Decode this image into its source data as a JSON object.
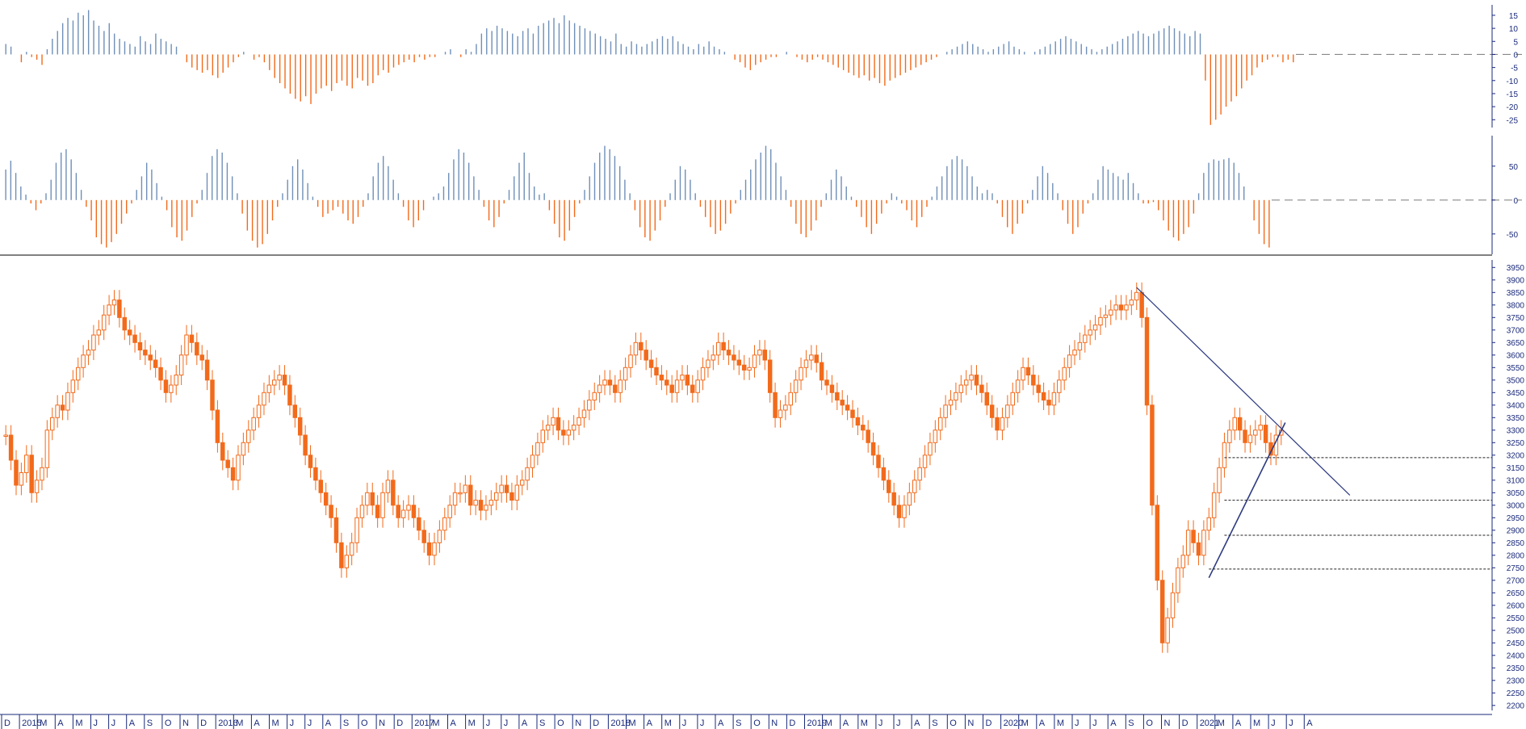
{
  "chart_data": [
    {
      "type": "bar",
      "panel": "top-oscillator",
      "yticks": [
        15,
        10,
        5,
        0,
        -5,
        -10,
        -15,
        -20,
        -25
      ],
      "ylim": [
        -28,
        19
      ],
      "colors": {
        "positive": "#6f8fb8",
        "negative": "#f26a1b"
      },
      "series": [
        {
          "values": [
            4,
            3,
            0,
            -3,
            1,
            -1,
            -2,
            -4,
            2,
            6,
            9,
            12,
            14,
            13,
            16,
            15,
            17,
            13,
            11,
            9,
            12,
            8,
            6,
            5,
            4,
            3,
            7,
            5,
            4,
            8,
            6,
            5,
            4,
            3,
            0,
            -3,
            -5,
            -6,
            -7,
            -6,
            -8,
            -9,
            -7,
            -5,
            -3,
            -1,
            1,
            0,
            -2,
            -1,
            -3,
            -6,
            -9,
            -11,
            -13,
            -15,
            -17,
            -18,
            -16,
            -19,
            -15,
            -13,
            -12,
            -14,
            -11,
            -10,
            -12,
            -13,
            -9,
            -10,
            -12,
            -11,
            -8,
            -6,
            -7,
            -5,
            -4,
            -3,
            -2,
            -3,
            -1,
            -2,
            -1,
            -1,
            0,
            1,
            2,
            0,
            -1,
            2,
            1,
            4,
            8,
            10,
            9,
            11,
            10,
            9,
            8,
            7,
            9,
            10,
            8,
            11,
            12,
            13,
            14,
            12,
            15,
            13,
            12,
            11,
            10,
            9,
            8,
            7,
            6,
            5,
            8,
            4,
            3,
            5,
            4,
            3,
            4,
            5,
            6,
            7,
            6,
            7,
            5,
            4,
            3,
            2,
            4,
            3,
            5,
            3,
            2,
            1,
            0,
            -2,
            -3,
            -5,
            -6,
            -4,
            -3,
            -2,
            -1,
            -1,
            0,
            1,
            0,
            -1,
            -2,
            -3,
            -2,
            -1,
            -2,
            -3,
            -4,
            -5,
            -6,
            -7,
            -8,
            -9,
            -8,
            -10,
            -9,
            -11,
            -12,
            -10,
            -9,
            -8,
            -7,
            -6,
            -5,
            -4,
            -3,
            -2,
            -1,
            0,
            1,
            2,
            3,
            4,
            5,
            4,
            3,
            2,
            1,
            2,
            3,
            4,
            5,
            3,
            2,
            1,
            0,
            1,
            2,
            3,
            4,
            5,
            6,
            7,
            6,
            5,
            4,
            3,
            2,
            1,
            2,
            3,
            4,
            5,
            6,
            7,
            8,
            9,
            8,
            7,
            8,
            9,
            10,
            11,
            10,
            9,
            8,
            7,
            9,
            8,
            -10,
            -27,
            -25,
            -23,
            -20,
            -18,
            -16,
            -13,
            -10,
            -8,
            -5,
            -3,
            -2,
            -1,
            -1,
            -3,
            -2,
            -3
          ]
        }
      ]
    },
    {
      "type": "bar",
      "panel": "middle-oscillator",
      "yticks": [
        50,
        0,
        -50
      ],
      "ylim": [
        -80,
        95
      ],
      "colors": {
        "positive": "#6f8fb8",
        "negative": "#f26a1b"
      },
      "series": [
        {
          "values": [
            45,
            58,
            40,
            20,
            8,
            -5,
            -15,
            -5,
            10,
            30,
            55,
            70,
            75,
            60,
            40,
            15,
            -10,
            -30,
            -55,
            -65,
            -70,
            -62,
            -50,
            -35,
            -20,
            -5,
            15,
            35,
            55,
            45,
            25,
            5,
            -15,
            -40,
            -55,
            -60,
            -45,
            -25,
            -5,
            15,
            40,
            65,
            75,
            70,
            55,
            35,
            10,
            -20,
            -45,
            -60,
            -70,
            -65,
            -50,
            -30,
            -10,
            10,
            30,
            50,
            60,
            45,
            25,
            5,
            -10,
            -25,
            -20,
            -15,
            -10,
            -20,
            -30,
            -35,
            -25,
            -10,
            10,
            35,
            55,
            65,
            50,
            30,
            10,
            -10,
            -30,
            -40,
            -30,
            -15,
            0,
            5,
            10,
            20,
            40,
            60,
            75,
            70,
            55,
            35,
            15,
            -10,
            -30,
            -40,
            -25,
            -5,
            15,
            35,
            55,
            70,
            40,
            20,
            8,
            10,
            -15,
            -35,
            -55,
            -60,
            -45,
            -25,
            -5,
            15,
            35,
            55,
            70,
            80,
            75,
            65,
            50,
            30,
            10,
            -15,
            -40,
            -55,
            -60,
            -45,
            -30,
            -10,
            10,
            30,
            50,
            45,
            30,
            10,
            -10,
            -25,
            -40,
            -50,
            -45,
            -35,
            -20,
            -5,
            15,
            30,
            45,
            60,
            70,
            80,
            75,
            55,
            35,
            15,
            -10,
            -35,
            -50,
            -55,
            -45,
            -30,
            -10,
            10,
            30,
            45,
            35,
            20,
            5,
            -10,
            -25,
            -40,
            -50,
            -35,
            -20,
            -5,
            10,
            5,
            -5,
            -15,
            -30,
            -40,
            -25,
            -10,
            5,
            20,
            35,
            50,
            60,
            65,
            60,
            50,
            35,
            20,
            10,
            15,
            10,
            -5,
            -25,
            -40,
            -50,
            -35,
            -20,
            -5,
            15,
            35,
            50,
            40,
            25,
            10,
            -15,
            -35,
            -50,
            -40,
            -20,
            -5,
            10,
            30,
            50,
            45,
            40,
            35,
            30,
            40,
            25,
            10,
            -5,
            -5,
            -3,
            -15,
            -30,
            -45,
            -55,
            -60,
            -50,
            -40,
            -20,
            10,
            40,
            55,
            60,
            58,
            60,
            62,
            55,
            40,
            20,
            0,
            -30,
            -50,
            -65,
            -70
          ]
        }
      ]
    },
    {
      "type": "candlestick",
      "panel": "price",
      "yticks": [
        2200,
        2250,
        2300,
        2350,
        2400,
        2450,
        2500,
        2550,
        2600,
        2650,
        2700,
        2750,
        2800,
        2850,
        2900,
        2950,
        3000,
        3050,
        3100,
        3150,
        3200,
        3250,
        3300,
        3350,
        3400,
        3450,
        3500,
        3550,
        3600,
        3650,
        3700,
        3750,
        3800,
        3850,
        3900,
        3950
      ],
      "ylim": [
        2180,
        3980
      ],
      "colors": {
        "candle": "#f26a1b",
        "trendline": "#2d3a80",
        "level": "#222222"
      },
      "closes": [
        3280,
        3180,
        3080,
        3130,
        3200,
        3050,
        3100,
        3150,
        3300,
        3350,
        3400,
        3380,
        3450,
        3500,
        3550,
        3600,
        3620,
        3680,
        3700,
        3760,
        3800,
        3820,
        3750,
        3700,
        3680,
        3650,
        3620,
        3600,
        3580,
        3550,
        3500,
        3450,
        3480,
        3520,
        3600,
        3680,
        3650,
        3600,
        3580,
        3500,
        3380,
        3250,
        3180,
        3150,
        3100,
        3200,
        3250,
        3300,
        3350,
        3400,
        3450,
        3480,
        3500,
        3520,
        3480,
        3400,
        3350,
        3280,
        3200,
        3150,
        3100,
        3050,
        3000,
        2950,
        2850,
        2750,
        2800,
        2850,
        2950,
        3000,
        3050,
        3000,
        2950,
        3050,
        3100,
        3000,
        2950,
        2980,
        3000,
        2950,
        2900,
        2850,
        2800,
        2850,
        2900,
        2950,
        3000,
        3050,
        3050,
        3080,
        3000,
        3020,
        2980,
        3000,
        3020,
        3050,
        3080,
        3050,
        3020,
        3080,
        3100,
        3150,
        3200,
        3250,
        3300,
        3320,
        3350,
        3300,
        3280,
        3300,
        3320,
        3350,
        3380,
        3420,
        3450,
        3480,
        3500,
        3480,
        3450,
        3500,
        3550,
        3600,
        3650,
        3620,
        3580,
        3550,
        3520,
        3500,
        3480,
        3450,
        3500,
        3520,
        3480,
        3450,
        3500,
        3550,
        3580,
        3600,
        3650,
        3620,
        3600,
        3580,
        3560,
        3540,
        3550,
        3600,
        3620,
        3580,
        3450,
        3350,
        3380,
        3400,
        3450,
        3500,
        3550,
        3580,
        3600,
        3570,
        3500,
        3480,
        3450,
        3420,
        3400,
        3380,
        3350,
        3320,
        3300,
        3250,
        3200,
        3150,
        3100,
        3050,
        3000,
        2950,
        3000,
        3050,
        3100,
        3150,
        3200,
        3250,
        3300,
        3350,
        3400,
        3420,
        3450,
        3480,
        3500,
        3520,
        3480,
        3450,
        3400,
        3350,
        3300,
        3350,
        3400,
        3450,
        3500,
        3550,
        3520,
        3480,
        3450,
        3420,
        3400,
        3450,
        3500,
        3550,
        3600,
        3620,
        3650,
        3680,
        3700,
        3720,
        3750,
        3760,
        3780,
        3800,
        3780,
        3800,
        3820,
        3850,
        3750,
        3400,
        3000,
        2700,
        2450,
        2550,
        2650,
        2750,
        2800,
        2900,
        2850,
        2800,
        2900,
        2950,
        3050,
        3150,
        3250,
        3300,
        3350,
        3300,
        3250,
        3280,
        3300,
        3320,
        3250,
        3200,
        3280,
        3300
      ]
    }
  ],
  "x_axis": {
    "labels": [
      "D",
      "2015",
      "M",
      "A",
      "M",
      "J",
      "J",
      "A",
      "S",
      "O",
      "N",
      "D",
      "2016",
      "M",
      "A",
      "M",
      "J",
      "J",
      "A",
      "S",
      "O",
      "N",
      "D",
      "2017",
      "M",
      "A",
      "M",
      "J",
      "J",
      "A",
      "S",
      "O",
      "N",
      "D",
      "2018",
      "M",
      "A",
      "M",
      "J",
      "J",
      "A",
      "S",
      "O",
      "N",
      "D",
      "2019",
      "M",
      "A",
      "M",
      "J",
      "J",
      "A",
      "S",
      "O",
      "N",
      "D",
      "2020",
      "M",
      "A",
      "M",
      "J",
      "J",
      "A",
      "S",
      "O",
      "N",
      "D",
      "2021",
      "M",
      "A",
      "M",
      "J",
      "J",
      "A"
    ],
    "year_labels": [
      "2015",
      "2016",
      "2017",
      "2018",
      "2019",
      "2020",
      "2021"
    ]
  }
}
